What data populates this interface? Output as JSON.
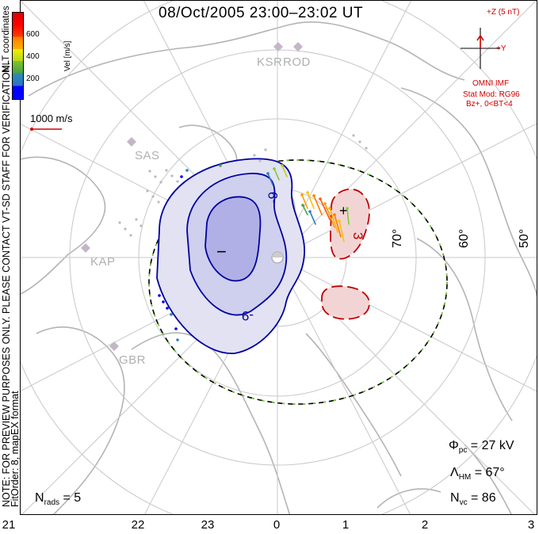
{
  "title": "08/Oct/2005 23:00–23:02 UT",
  "side_notes": {
    "note_line1": "NOTE: FOR PREVIEW PURPOSES ONLY. PLEASE CONTACT VT-SD STAFF FOR VERIFICATION.",
    "note_line2": "FitOrder: 8, mapEX format",
    "coords": "MLT coordinates"
  },
  "colorbar": {
    "label": "Vel [m/s]",
    "ticks": [
      "600",
      "400",
      "200"
    ],
    "colors": [
      "#0000ff",
      "#2d7fc0",
      "#6fbf2a",
      "#f0f000",
      "#ff8c00",
      "#ff0000"
    ]
  },
  "velocity_scale": {
    "label": "1000 m/s",
    "color": "#d00000"
  },
  "imf": {
    "bz_label": "+Z (5 nT)",
    "by_label": "+Y",
    "source": "OMNI IMF",
    "model": "Stat Mod: RG96",
    "condition": "Bz+,  0<BT<4",
    "color": "#d00000"
  },
  "stats": {
    "phi_pc_symbol": "Φ",
    "phi_pc_sub": "pc",
    "phi_pc_value": "= 27 kV",
    "lambda_hm_symbol": "Λ",
    "lambda_hm_sub": "HM",
    "lambda_hm_value": "= 67°",
    "n_vc_symbol": "N",
    "n_vc_sub": "vc",
    "n_vc_value": "= 86",
    "n_rads_symbol": "N",
    "n_rads_sub": "rads",
    "n_rads_value": "= 5"
  },
  "mlt_axis": [
    "21",
    "22",
    "23",
    "0",
    "1",
    "2",
    "3"
  ],
  "latitude_labels": [
    "70°",
    "60°",
    "50°"
  ],
  "radar_sites": [
    "KSR",
    "ROD",
    "SAS",
    "KAP",
    "GBR"
  ],
  "potential_contours": {
    "negative_labels": [
      "-9",
      "-9"
    ],
    "positive_labels": [
      "3"
    ],
    "min_marker": "−",
    "max_marker": "+",
    "negative_color": "#0000a0",
    "positive_color": "#c00000",
    "negative_fill": "#d6d6f0",
    "positive_fill": "#f6d6d6"
  }
}
